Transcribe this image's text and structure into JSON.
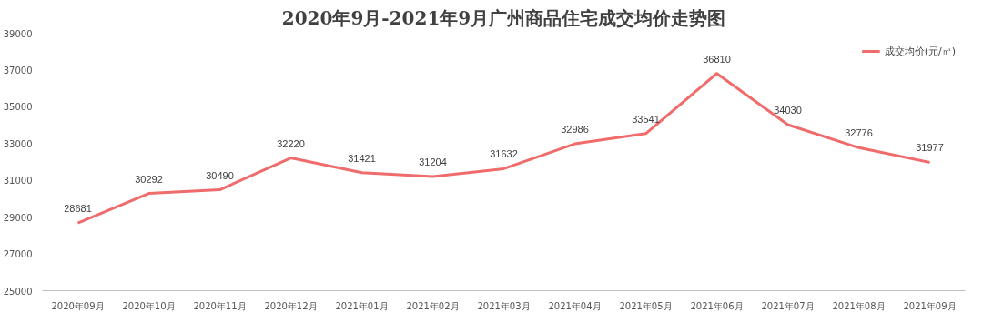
{
  "chart_data": {
    "type": "line",
    "title": "2020年9月-2021年9月广州商品住宅成交均价走势图",
    "categories": [
      "2020年09月",
      "2020年10月",
      "2020年11月",
      "2020年12月",
      "2021年01月",
      "2021年02月",
      "2021年03月",
      "2021年04月",
      "2021年05月",
      "2021年06月",
      "2021年07月",
      "2021年08月",
      "2021年09月"
    ],
    "series": [
      {
        "name": "成交均价(元/㎡)",
        "color": "#f06b6b",
        "values": [
          28681,
          30292,
          30490,
          32220,
          31421,
          31204,
          31632,
          32986,
          33541,
          36810,
          34030,
          32776,
          31977
        ]
      }
    ],
    "ylim": [
      25000,
      39000
    ],
    "yticks": [
      25000,
      27000,
      29000,
      31000,
      33000,
      35000,
      37000,
      39000
    ],
    "data_labels": true,
    "legend": "top right",
    "grid": false,
    "marker": "none",
    "line_style": "solid"
  }
}
